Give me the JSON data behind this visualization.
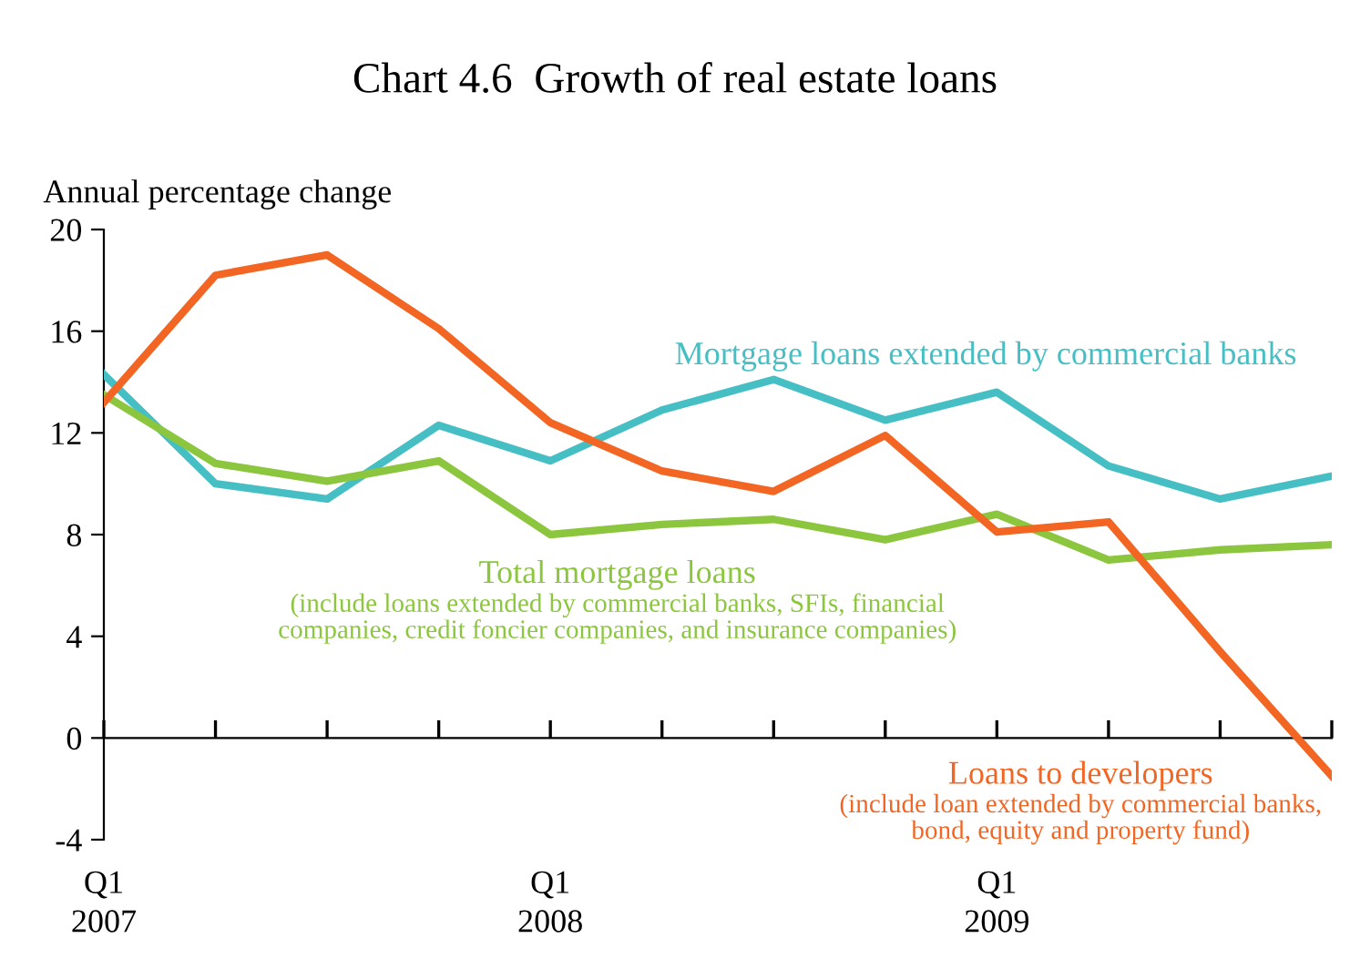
{
  "chart_data": {
    "type": "line",
    "title": "Chart 4.6  Growth of real estate loans",
    "ylabel": "Annual percentage change",
    "categories": [
      "Q1\n2007",
      null,
      null,
      null,
      "Q1\n2008",
      null,
      null,
      null,
      "Q1\n2009",
      null,
      null,
      null
    ],
    "ylim": [
      -4,
      20
    ],
    "yticks": [
      -4,
      0,
      4,
      8,
      12,
      16,
      20
    ],
    "legend": false,
    "marker": "none",
    "line_style": "solid",
    "series": [
      {
        "name": "Mortgage loans extended by commercial banks",
        "color": "#45bfc4",
        "values": [
          14.3,
          10.0,
          9.4,
          12.3,
          10.9,
          12.9,
          14.1,
          12.5,
          13.6,
          10.7,
          9.4,
          10.3
        ]
      },
      {
        "name": "Total mortgage loans\n(include loans extended by commercial banks, SFIs, financial\ncompanies, credit foncier companies, and insurance companies)",
        "color": "#8cc63f",
        "values": [
          13.5,
          10.8,
          10.1,
          10.9,
          8.0,
          8.4,
          8.6,
          7.8,
          8.8,
          7.0,
          7.4,
          7.6
        ]
      },
      {
        "name": "Loans to developers\n(include loan extended by commercial banks,\nbond, equity and property fund)",
        "color": "#f26522",
        "values": [
          13.2,
          18.2,
          19.0,
          16.1,
          12.4,
          10.5,
          9.7,
          11.9,
          8.1,
          8.5,
          3.4,
          -1.5
        ]
      }
    ]
  }
}
